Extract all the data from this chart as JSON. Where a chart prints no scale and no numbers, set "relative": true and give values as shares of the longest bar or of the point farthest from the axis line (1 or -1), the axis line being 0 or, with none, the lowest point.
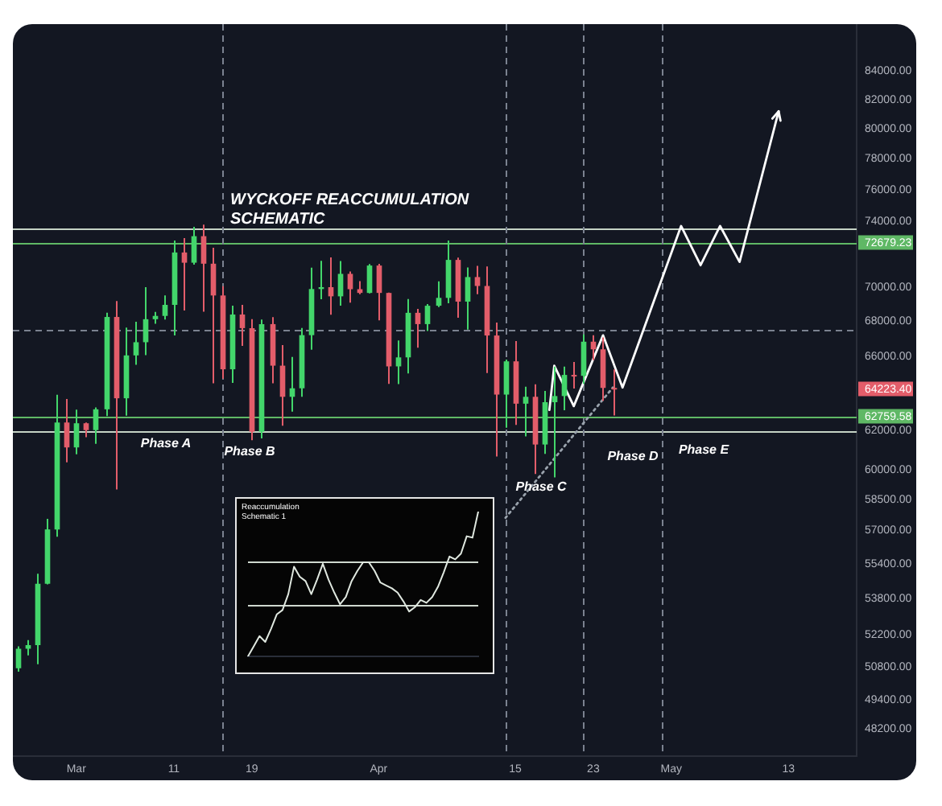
{
  "chart_data": [
    {
      "type": "candlestick",
      "title": "WYCKOFF REACCUMULATION SCHEMATIC",
      "x": [
        "--02-24",
        "--02-25",
        "--02-26",
        "--02-27",
        "--02-28",
        "--02-29",
        "--03-01",
        "--03-02",
        "--03-03",
        "--03-04",
        "--03-05",
        "--03-06",
        "--03-07",
        "--03-08",
        "--03-09",
        "--03-10",
        "--03-11",
        "--03-12",
        "--03-13",
        "--03-14",
        "--03-15",
        "--03-16",
        "--03-17",
        "--03-18",
        "--03-19",
        "--03-20",
        "--03-21",
        "--03-22",
        "--03-23",
        "--03-24",
        "--03-25",
        "--03-26",
        "--03-27",
        "--03-28",
        "--03-29",
        "--03-30",
        "--03-31",
        "--04-01",
        "--04-02",
        "--04-03",
        "--04-04",
        "--04-05",
        "--04-06",
        "--04-07",
        "--04-08",
        "--04-09",
        "--04-10",
        "--04-11",
        "--04-12",
        "--04-13",
        "--04-14",
        "--04-15",
        "--04-16",
        "--04-17",
        "--04-18",
        "--04-19",
        "--04-20",
        "--04-21",
        "--04-22",
        "--04-23",
        "--04-24",
        "--04-25"
      ],
      "ohlc": [
        [
          50730,
          51680,
          50580,
          51570
        ],
        [
          51570,
          51950,
          51280,
          51730
        ],
        [
          51730,
          54940,
          50900,
          54480
        ],
        [
          54480,
          57550,
          54450,
          57040
        ],
        [
          57040,
          63910,
          56690,
          62430
        ],
        [
          62430,
          63680,
          60360,
          61130
        ],
        [
          61130,
          63110,
          60780,
          62390
        ],
        [
          62390,
          62430,
          61660,
          62030
        ],
        [
          62030,
          63230,
          61320,
          63130
        ],
        [
          63130,
          68500,
          62770,
          68250
        ],
        [
          68250,
          69170,
          59000,
          63720
        ],
        [
          63720,
          67640,
          62790,
          66070
        ],
        [
          66070,
          67980,
          65550,
          66810
        ],
        [
          66810,
          69990,
          66080,
          68120
        ],
        [
          68120,
          68540,
          67860,
          68310
        ],
        [
          68310,
          69500,
          68100,
          68950
        ],
        [
          68950,
          72800,
          67190,
          72070
        ],
        [
          72070,
          72950,
          68620,
          71450
        ],
        [
          71450,
          73650,
          71330,
          73070
        ],
        [
          73070,
          73780,
          68550,
          71390
        ],
        [
          71390,
          72360,
          64530,
          69500
        ],
        [
          69500,
          70050,
          64780,
          65300
        ],
        [
          65300,
          68900,
          64550,
          68390
        ],
        [
          68390,
          68950,
          66600,
          67610
        ],
        [
          67610,
          68120,
          61500,
          61940
        ],
        [
          61940,
          68100,
          61600,
          67840
        ],
        [
          67840,
          68240,
          64530,
          65500
        ],
        [
          65500,
          66650,
          62260,
          63800
        ],
        [
          63800,
          65980,
          63000,
          64260
        ],
        [
          64260,
          67620,
          63800,
          67210
        ],
        [
          67210,
          71150,
          66390,
          69880
        ],
        [
          69880,
          71560,
          69280,
          69990
        ],
        [
          69990,
          71770,
          68380,
          69450
        ],
        [
          69450,
          71550,
          68900,
          70780
        ],
        [
          70780,
          70920,
          69080,
          69870
        ],
        [
          69870,
          70350,
          69580,
          69650
        ],
        [
          69650,
          71370,
          69620,
          71280
        ],
        [
          71280,
          71380,
          68060,
          69650
        ],
        [
          69650,
          69670,
          64500,
          65460
        ],
        [
          65460,
          66910,
          64490,
          65960
        ],
        [
          65960,
          69290,
          65070,
          68490
        ],
        [
          68490,
          68720,
          66500,
          67840
        ],
        [
          67840,
          69000,
          67450,
          68900
        ],
        [
          68900,
          70330,
          68820,
          69360
        ],
        [
          69360,
          72800,
          69040,
          71620
        ],
        [
          71620,
          71760,
          68210,
          69140
        ],
        [
          69140,
          71170,
          67520,
          70590
        ],
        [
          70590,
          71260,
          69570,
          70060
        ],
        [
          70060,
          71230,
          65090,
          67190
        ],
        [
          67190,
          67930,
          60660,
          63920
        ],
        [
          63920,
          65840,
          62150,
          65740
        ],
        [
          65740,
          66870,
          62300,
          63430
        ],
        [
          63430,
          64350,
          61700,
          63800
        ],
        [
          63800,
          64480,
          59770,
          61280
        ],
        [
          61280,
          64120,
          60800,
          63510
        ],
        [
          63510,
          65450,
          59600,
          63840
        ],
        [
          63840,
          65450,
          63080,
          64990
        ],
        [
          64990,
          65700,
          64250,
          64940
        ],
        [
          64940,
          67250,
          64500,
          66840
        ],
        [
          66840,
          67200,
          65800,
          66410
        ],
        [
          66410,
          67080,
          63590,
          64280
        ],
        [
          64280,
          65290,
          62800,
          64223.4
        ]
      ],
      "colors": [
        "#43d66b",
        "#43d66b",
        "#43d66b",
        "#43d66b",
        "#43d66b",
        "#e35d6a",
        "#43d66b",
        "#e35d6a",
        "#43d66b",
        "#43d66b",
        "#e35d6a",
        "#43d66b",
        "#43d66b",
        "#43d66b",
        "#43d66b",
        "#43d66b",
        "#43d66b",
        "#e35d6a",
        "#43d66b",
        "#e35d6a",
        "#e35d6a",
        "#e35d6a",
        "#43d66b",
        "#e35d6a",
        "#e35d6a",
        "#43d66b",
        "#e35d6a",
        "#e35d6a",
        "#43d66b",
        "#43d66b",
        "#43d66b",
        "#43d66b",
        "#e35d6a",
        "#43d66b",
        "#e35d6a",
        "#e35d6a",
        "#43d66b",
        "#e35d6a",
        "#e35d6a",
        "#43d66b",
        "#43d66b",
        "#e35d6a",
        "#43d66b",
        "#43d66b",
        "#43d66b",
        "#e35d6a",
        "#43d66b",
        "#e35d6a",
        "#e35d6a",
        "#e35d6a",
        "#43d66b",
        "#e35d6a",
        "#43d66b",
        "#e35d6a",
        "#43d66b",
        "#43d66b",
        "#43d66b",
        "#e35d6a",
        "#43d66b",
        "#e35d6a",
        "#e35d6a",
        "#e35d6a"
      ],
      "series": [
        {
          "type": "line",
          "x": [
            "--04-18T12:00",
            "--04-19",
            "--04-21",
            "--04-24",
            "--04-26",
            "--05-02",
            "--05-04",
            "--05-06",
            "--05-08",
            "--05-12"
          ],
          "values": [
            63100,
            65500,
            63300,
            67200,
            64300,
            73700,
            71300,
            73700,
            71500,
            81200
          ],
          "color": "#ffffff",
          "line_style": "solid"
        },
        {
          "type": "line",
          "x": [
            "--04-14",
            "--04-25"
          ],
          "values": [
            57600,
            64300
          ],
          "color": "#9aa3ad",
          "line_style": "dotted"
        }
      ],
      "log": true,
      "marker": "none",
      "xlim": [
        "--02-23T12:00",
        "--05-20"
      ],
      "xticks": [
        {
          "value": "--03-01",
          "label": "Mar"
        },
        {
          "value": "--03-11",
          "label": "11"
        },
        {
          "value": "--03-19",
          "label": "19"
        },
        {
          "value": "--04-01",
          "label": "Apr"
        },
        {
          "value": "--04-15",
          "label": "15"
        },
        {
          "value": "--04-23",
          "label": "23"
        },
        {
          "value": "--05-01",
          "label": "May"
        },
        {
          "value": "--05-13",
          "label": "13"
        }
      ],
      "ylim": [
        47100,
        87400
      ],
      "yticks": [
        {
          "value": 84000,
          "label": "84000.00"
        },
        {
          "value": 82000,
          "label": "82000.00"
        },
        {
          "value": 80000,
          "label": "80000.00"
        },
        {
          "value": 78000,
          "label": "78000.00"
        },
        {
          "value": 76000,
          "label": "76000.00"
        },
        {
          "value": 74000,
          "label": "74000.00"
        },
        {
          "value": 70000,
          "label": "70000.00"
        },
        {
          "value": 68000,
          "label": "68000.00"
        },
        {
          "value": 66000,
          "label": "66000.00"
        },
        {
          "value": 62000,
          "label": "62000.00"
        },
        {
          "value": 60000,
          "label": "60000.00"
        },
        {
          "value": 58500,
          "label": "58500.00"
        },
        {
          "value": 57000,
          "label": "57000.00"
        },
        {
          "value": 55400,
          "label": "55400.00"
        },
        {
          "value": 53800,
          "label": "53800.00"
        },
        {
          "value": 52200,
          "label": "52200.00"
        },
        {
          "value": 50800,
          "label": "50800.00"
        },
        {
          "value": 49400,
          "label": "49400.00"
        },
        {
          "value": 48200,
          "label": "48200.00"
        }
      ],
      "ref_lines": [
        {
          "axis": "y",
          "value": 73500,
          "color": "#c5d3c5"
        },
        {
          "axis": "y",
          "value": 72679.23,
          "label": "72679.23",
          "color": "#5fb865"
        },
        {
          "axis": "y",
          "value": 67500,
          "color": "#7b8290",
          "line_style": "dashed"
        },
        {
          "axis": "y",
          "value": 62759.58,
          "label": "62759.58",
          "color": "#5fb865"
        },
        {
          "axis": "y",
          "value": 62000,
          "color": "#c5d3c5"
        },
        {
          "axis": "x",
          "value": "--03-16",
          "color": "#7b8290",
          "line_style": "dashed"
        },
        {
          "axis": "x",
          "value": "--04-14",
          "color": "#7b8290",
          "line_style": "dashed"
        },
        {
          "axis": "x",
          "value": "--04-22",
          "color": "#7b8290",
          "line_style": "dashed"
        },
        {
          "axis": "x",
          "value": "--04-30",
          "color": "#7b8290",
          "line_style": "dashed"
        }
      ],
      "annotations": [
        "Phase A",
        "Phase B",
        "Phase C",
        "Phase D",
        "Phase E",
        "64223.40"
      ]
    },
    {
      "type": "line",
      "title": "Reaccumulation Schematic 1",
      "relative": true,
      "categories": [
        null,
        null,
        null,
        null,
        null,
        null,
        null,
        null,
        null,
        null,
        null,
        null,
        null,
        null,
        null,
        null,
        null,
        null,
        null,
        null,
        null,
        null,
        null,
        null,
        null,
        null,
        null,
        null,
        null,
        null,
        null,
        null,
        null,
        null,
        null,
        null,
        null,
        null,
        null,
        null,
        null
      ],
      "values": [
        0,
        0.07,
        0.14,
        0.1,
        0.19,
        0.29,
        0.32,
        0.43,
        0.62,
        0.55,
        0.52,
        0.43,
        0.53,
        0.64,
        0.53,
        0.44,
        0.36,
        0.41,
        0.52,
        0.59,
        0.65,
        0.65,
        0.59,
        0.51,
        0.49,
        0.47,
        0.44,
        0.38,
        0.31,
        0.34,
        0.39,
        0.37,
        0.41,
        0.48,
        0.58,
        0.69,
        0.67,
        0.71,
        0.83,
        0.82,
        1
      ],
      "color": "#e0e8e0",
      "marker": "none",
      "ref_lines": [
        {
          "axis": "y",
          "value": 0.66,
          "color": "#cfd8cf"
        },
        {
          "axis": "y",
          "value": 0.36,
          "color": "#cfd8cf"
        }
      ]
    }
  ]
}
